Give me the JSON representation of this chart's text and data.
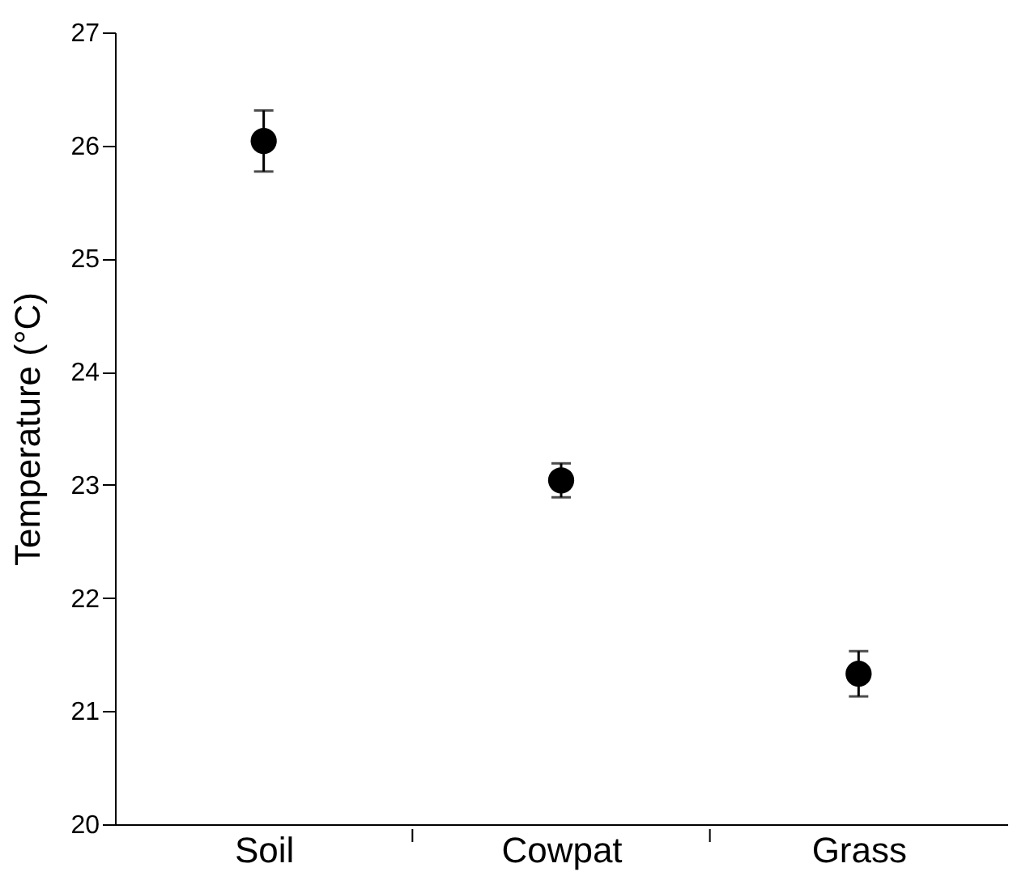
{
  "chart_data": {
    "type": "scatter",
    "ylabel": "Temperature (°C)",
    "categories": [
      "Soil",
      "Cowpat",
      "Grass"
    ],
    "series": [
      {
        "color": "#000000",
        "values": [
          26.04,
          23.04,
          21.33
        ],
        "errors": [
          0.27,
          0.15,
          0.2
        ]
      }
    ],
    "ylim": [
      20,
      27
    ],
    "yticks": [
      20,
      21,
      22,
      23,
      24,
      25,
      26,
      27
    ],
    "grid": false,
    "marker": "circle"
  }
}
